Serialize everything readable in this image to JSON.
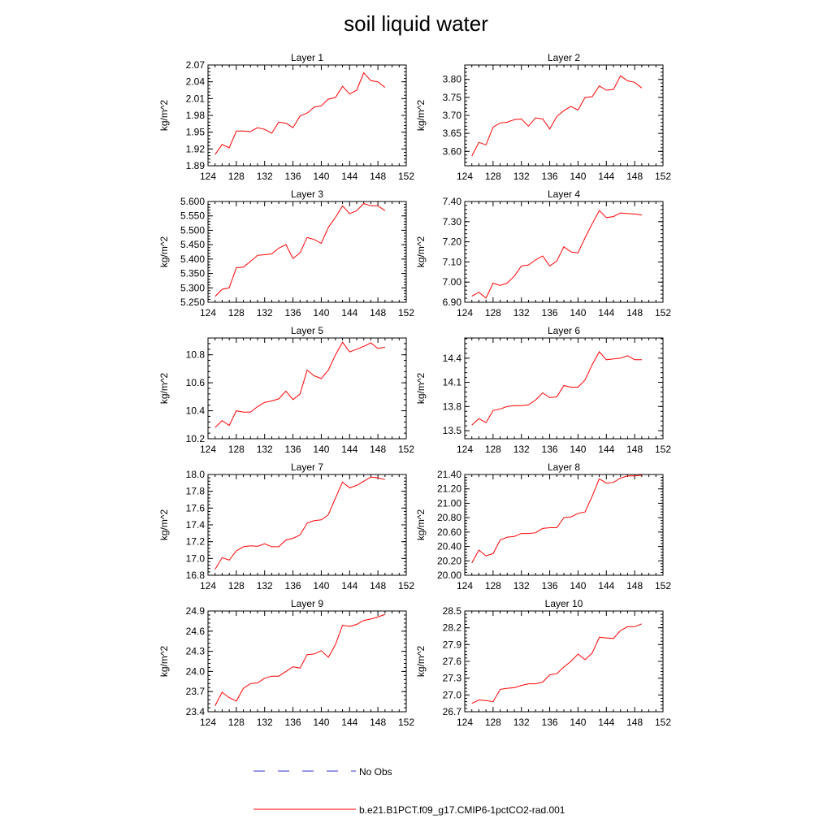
{
  "title": "soil liquid water",
  "colors": {
    "model_line": "#ff0000",
    "obs_line": "#3333cc",
    "axis": "#000000"
  },
  "legend": {
    "entries": [
      {
        "label": "No Obs",
        "style": "dashed",
        "color": "#3333cc"
      },
      {
        "label": "b.e21.B1PCT.f09_g17.CMIP6-1pctCO2-rad.001",
        "style": "solid",
        "color": "#ff0000"
      }
    ]
  },
  "chart_data": [
    {
      "type": "line",
      "title": "Layer 1",
      "ylabel": "kg/m^2",
      "xlim": [
        124,
        152
      ],
      "xticks": [
        124,
        128,
        132,
        136,
        140,
        144,
        148,
        152
      ],
      "ylim": [
        1.89,
        2.07
      ],
      "yticks": [
        "1.89",
        "1.92",
        "1.95",
        "1.98",
        "2.01",
        "2.04",
        "2.07"
      ],
      "x": [
        125,
        126,
        127,
        128,
        129,
        130,
        131,
        132,
        133,
        134,
        135,
        136,
        137,
        138,
        139,
        140,
        141,
        142,
        143,
        144,
        145,
        146,
        147,
        148,
        149
      ],
      "series": [
        {
          "name": "b.e21.B1PCT.f09_g17.CMIP6-1pctCO2-rad.001",
          "values": [
            1.91,
            1.928,
            1.922,
            1.952,
            1.952,
            1.951,
            1.958,
            1.955,
            1.948,
            1.968,
            1.966,
            1.958,
            1.979,
            1.984,
            1.995,
            1.997,
            2.009,
            2.012,
            2.032,
            2.018,
            2.025,
            2.056,
            2.042,
            2.04,
            2.03
          ]
        }
      ]
    },
    {
      "type": "line",
      "title": "Layer 2",
      "ylabel": "kg/m^2",
      "xlim": [
        124,
        152
      ],
      "xticks": [
        124,
        128,
        132,
        136,
        140,
        144,
        148,
        152
      ],
      "ylim": [
        3.56,
        3.84
      ],
      "yticks": [
        "3.60",
        "3.65",
        "3.70",
        "3.75",
        "3.80"
      ],
      "x": [
        125,
        126,
        127,
        128,
        129,
        130,
        131,
        132,
        133,
        134,
        135,
        136,
        137,
        138,
        139,
        140,
        141,
        142,
        143,
        144,
        145,
        146,
        147,
        148,
        149
      ],
      "series": [
        {
          "name": "b.e21.B1PCT.f09_g17.CMIP6-1pctCO2-rad.001",
          "values": [
            3.587,
            3.625,
            3.618,
            3.667,
            3.679,
            3.681,
            3.688,
            3.69,
            3.67,
            3.693,
            3.69,
            3.662,
            3.697,
            3.713,
            3.725,
            3.715,
            3.75,
            3.752,
            3.782,
            3.77,
            3.772,
            3.81,
            3.796,
            3.792,
            3.776
          ]
        }
      ]
    },
    {
      "type": "line",
      "title": "Layer 3",
      "ylabel": "kg/m^2",
      "xlim": [
        124,
        152
      ],
      "xticks": [
        124,
        128,
        132,
        136,
        140,
        144,
        148,
        152
      ],
      "ylim": [
        5.25,
        5.6
      ],
      "yticks": [
        "5.250",
        "5.300",
        "5.350",
        "5.400",
        "5.450",
        "5.500",
        "5.550",
        "5.600"
      ],
      "x": [
        125,
        126,
        127,
        128,
        129,
        130,
        131,
        132,
        133,
        134,
        135,
        136,
        137,
        138,
        139,
        140,
        141,
        142,
        143,
        144,
        145,
        146,
        147,
        148,
        149
      ],
      "series": [
        {
          "name": "b.e21.B1PCT.f09_g17.CMIP6-1pctCO2-rad.001",
          "values": [
            5.27,
            5.295,
            5.3,
            5.37,
            5.372,
            5.392,
            5.413,
            5.415,
            5.418,
            5.438,
            5.45,
            5.402,
            5.422,
            5.475,
            5.468,
            5.455,
            5.51,
            5.545,
            5.585,
            5.558,
            5.568,
            5.593,
            5.585,
            5.585,
            5.568
          ]
        }
      ]
    },
    {
      "type": "line",
      "title": "Layer 4",
      "ylabel": "kg/m^2",
      "xlim": [
        124,
        152
      ],
      "xticks": [
        124,
        128,
        132,
        136,
        140,
        144,
        148,
        152
      ],
      "ylim": [
        6.9,
        7.4
      ],
      "yticks": [
        "6.90",
        "7.00",
        "7.10",
        "7.20",
        "7.30",
        "7.40"
      ],
      "x": [
        125,
        126,
        127,
        128,
        129,
        130,
        131,
        132,
        133,
        134,
        135,
        136,
        137,
        138,
        139,
        140,
        141,
        142,
        143,
        144,
        145,
        146,
        147,
        148,
        149
      ],
      "series": [
        {
          "name": "b.e21.B1PCT.f09_g17.CMIP6-1pctCO2-rad.001",
          "values": [
            6.93,
            6.95,
            6.92,
            6.995,
            6.983,
            6.995,
            7.03,
            7.08,
            7.085,
            7.11,
            7.13,
            7.08,
            7.105,
            7.175,
            7.15,
            7.145,
            7.22,
            7.29,
            7.355,
            7.32,
            7.325,
            7.343,
            7.34,
            7.338,
            7.333
          ]
        }
      ]
    },
    {
      "type": "line",
      "title": "Layer 5",
      "ylabel": "kg/m^2",
      "xlim": [
        124,
        152
      ],
      "xticks": [
        124,
        128,
        132,
        136,
        140,
        144,
        148,
        152
      ],
      "ylim": [
        10.2,
        10.92
      ],
      "yticks": [
        "10.2",
        "10.4",
        "10.6",
        "10.8"
      ],
      "x": [
        125,
        126,
        127,
        128,
        129,
        130,
        131,
        132,
        133,
        134,
        135,
        136,
        137,
        138,
        139,
        140,
        141,
        142,
        143,
        144,
        145,
        146,
        147,
        148,
        149
      ],
      "series": [
        {
          "name": "b.e21.B1PCT.f09_g17.CMIP6-1pctCO2-rad.001",
          "values": [
            10.28,
            10.33,
            10.295,
            10.4,
            10.39,
            10.39,
            10.43,
            10.46,
            10.47,
            10.485,
            10.54,
            10.48,
            10.52,
            10.69,
            10.65,
            10.63,
            10.69,
            10.8,
            10.89,
            10.82,
            10.84,
            10.86,
            10.885,
            10.845,
            10.855
          ]
        }
      ]
    },
    {
      "type": "line",
      "title": "Layer 6",
      "ylabel": "kg/m^2",
      "xlim": [
        124,
        152
      ],
      "xticks": [
        124,
        128,
        132,
        136,
        140,
        144,
        148,
        152
      ],
      "ylim": [
        13.4,
        14.65
      ],
      "yticks": [
        "13.5",
        "13.8",
        "14.1",
        "14.4"
      ],
      "x": [
        125,
        126,
        127,
        128,
        129,
        130,
        131,
        132,
        133,
        134,
        135,
        136,
        137,
        138,
        139,
        140,
        141,
        142,
        143,
        144,
        145,
        146,
        147,
        148,
        149
      ],
      "series": [
        {
          "name": "b.e21.B1PCT.f09_g17.CMIP6-1pctCO2-rad.001",
          "values": [
            13.57,
            13.65,
            13.6,
            13.75,
            13.77,
            13.8,
            13.81,
            13.81,
            13.82,
            13.88,
            13.97,
            13.91,
            13.92,
            14.06,
            14.04,
            14.04,
            14.13,
            14.32,
            14.48,
            14.38,
            14.39,
            14.4,
            14.43,
            14.38,
            14.38
          ]
        }
      ]
    },
    {
      "type": "line",
      "title": "Layer 7",
      "ylabel": "kg/m^2",
      "xlim": [
        124,
        152
      ],
      "xticks": [
        124,
        128,
        132,
        136,
        140,
        144,
        148,
        152
      ],
      "ylim": [
        16.8,
        18.0
      ],
      "yticks": [
        "16.8",
        "17.0",
        "17.2",
        "17.4",
        "17.6",
        "17.8",
        "18.0"
      ],
      "x": [
        125,
        126,
        127,
        128,
        129,
        130,
        131,
        132,
        133,
        134,
        135,
        136,
        137,
        138,
        139,
        140,
        141,
        142,
        143,
        144,
        145,
        146,
        147,
        148,
        149
      ],
      "series": [
        {
          "name": "b.e21.B1PCT.f09_g17.CMIP6-1pctCO2-rad.001",
          "values": [
            16.87,
            17.01,
            16.98,
            17.09,
            17.14,
            17.15,
            17.145,
            17.175,
            17.14,
            17.14,
            17.22,
            17.24,
            17.28,
            17.42,
            17.45,
            17.46,
            17.52,
            17.72,
            17.91,
            17.84,
            17.87,
            17.92,
            17.97,
            17.96,
            17.94
          ]
        }
      ]
    },
    {
      "type": "line",
      "title": "Layer 8",
      "ylabel": "kg/m^2",
      "xlim": [
        124,
        152
      ],
      "xticks": [
        124,
        128,
        132,
        136,
        140,
        144,
        148,
        152
      ],
      "ylim": [
        20.0,
        21.4
      ],
      "yticks": [
        "20.00",
        "20.20",
        "20.40",
        "20.60",
        "20.80",
        "21.00",
        "21.20",
        "21.40"
      ],
      "x": [
        125,
        126,
        127,
        128,
        129,
        130,
        131,
        132,
        133,
        134,
        135,
        136,
        137,
        138,
        139,
        140,
        141,
        142,
        143,
        144,
        145,
        146,
        147,
        148,
        149
      ],
      "series": [
        {
          "name": "b.e21.B1PCT.f09_g17.CMIP6-1pctCO2-rad.001",
          "values": [
            20.17,
            20.35,
            20.27,
            20.3,
            20.49,
            20.53,
            20.54,
            20.58,
            20.58,
            20.59,
            20.65,
            20.66,
            20.66,
            20.8,
            20.81,
            20.86,
            20.88,
            21.1,
            21.34,
            21.28,
            21.29,
            21.35,
            21.38,
            21.38,
            21.39
          ]
        }
      ]
    },
    {
      "type": "line",
      "title": "Layer 9",
      "ylabel": "kg/m^2",
      "xlim": [
        124,
        152
      ],
      "xticks": [
        124,
        128,
        132,
        136,
        140,
        144,
        148,
        152
      ],
      "ylim": [
        23.4,
        24.9
      ],
      "yticks": [
        "23.4",
        "23.7",
        "24.0",
        "24.3",
        "24.6",
        "24.9"
      ],
      "x": [
        125,
        126,
        127,
        128,
        129,
        130,
        131,
        132,
        133,
        134,
        135,
        136,
        137,
        138,
        139,
        140,
        141,
        142,
        143,
        144,
        145,
        146,
        147,
        148,
        149
      ],
      "series": [
        {
          "name": "b.e21.B1PCT.f09_g17.CMIP6-1pctCO2-rad.001",
          "values": [
            23.49,
            23.69,
            23.61,
            23.56,
            23.75,
            23.82,
            23.83,
            23.9,
            23.93,
            23.93,
            24.0,
            24.07,
            24.05,
            24.25,
            24.26,
            24.31,
            24.21,
            24.4,
            24.69,
            24.67,
            24.7,
            24.76,
            24.78,
            24.81,
            24.85
          ]
        }
      ]
    },
    {
      "type": "line",
      "title": "Layer 10",
      "ylabel": "kg/m^2",
      "xlim": [
        124,
        152
      ],
      "xticks": [
        124,
        128,
        132,
        136,
        140,
        144,
        148,
        152
      ],
      "ylim": [
        26.7,
        28.5
      ],
      "yticks": [
        "26.7",
        "27.0",
        "27.3",
        "27.6",
        "27.9",
        "28.2",
        "28.5"
      ],
      "x": [
        125,
        126,
        127,
        128,
        129,
        130,
        131,
        132,
        133,
        134,
        135,
        136,
        137,
        138,
        139,
        140,
        141,
        142,
        143,
        144,
        145,
        146,
        147,
        148,
        149
      ],
      "series": [
        {
          "name": "b.e21.B1PCT.f09_g17.CMIP6-1pctCO2-rad.001",
          "values": [
            26.85,
            26.91,
            26.9,
            26.88,
            27.1,
            27.12,
            27.13,
            27.17,
            27.2,
            27.2,
            27.23,
            27.36,
            27.38,
            27.5,
            27.6,
            27.73,
            27.63,
            27.75,
            28.03,
            28.02,
            28.01,
            28.15,
            28.22,
            28.22,
            28.27
          ]
        }
      ]
    }
  ]
}
